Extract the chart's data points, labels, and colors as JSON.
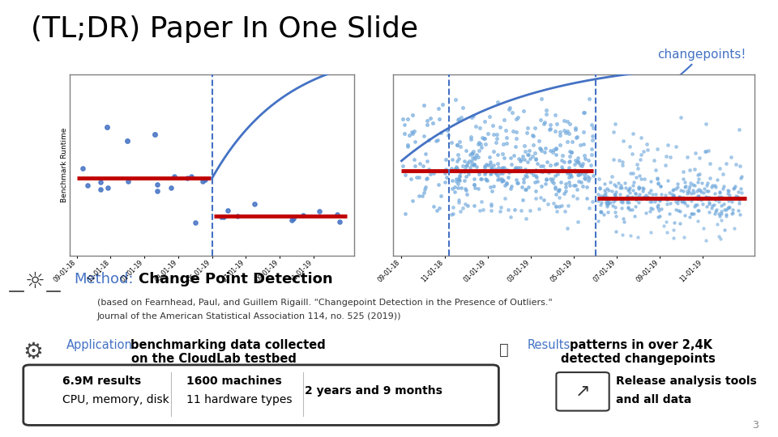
{
  "title": "(TL;DR) Paper In One Slide",
  "title_fontsize": 26,
  "title_color": "#000000",
  "changepoints_label": "changepoints!",
  "changepoints_color": "#4472C4",
  "bg_color": "#FFFFFF",
  "method_label": "Method:",
  "method_label_color": "#4472C4",
  "method_text": "Change Point Detection",
  "method_text_color": "#000000",
  "citation_line1": "(based on Fearnhead, Paul, and Guillem Rigaill. \"Changepoint Detection in the Presence of Outliers.\"",
  "citation_line2": "Journal of the American Statistical Association 114, no. 525 (2019))",
  "citation_fontsize": 8.5,
  "app_label": "Application:",
  "app_label_color": "#4472C4",
  "results_label": "Results:",
  "results_label_color": "#4472C4",
  "box_line1a": "6.9M results",
  "box_line1b": "1600 machines",
  "box_line1c": "2 years and 9 months",
  "box_line2a": "CPU, memory, disk",
  "box_line2b": "11 hardware types",
  "release_line1": "Release analysis tools",
  "release_line2": "and all data",
  "page_number": "3",
  "dates": [
    "09-01-18",
    "11-01-18",
    "01-01-19",
    "03-01-19",
    "05-01-19",
    "07-01-19",
    "09-01-19",
    "11-01-19"
  ],
  "chart_bg": "#FFFFFF",
  "scatter_color": "#6fa8dc",
  "scatter_color2": "#4472C4",
  "red_line_color": "#C00000",
  "dashed_color": "#4472C4",
  "curve_color": "#4472C4"
}
